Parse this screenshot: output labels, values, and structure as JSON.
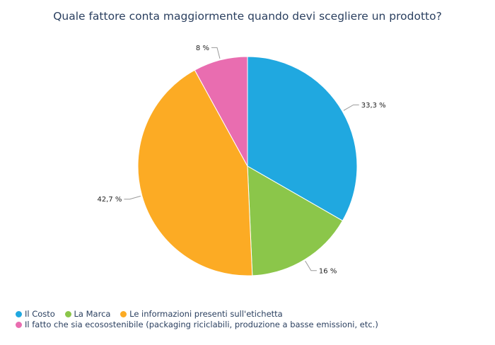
{
  "chart_data": {
    "type": "pie",
    "title": "Quale fattore conta maggiormente quando devi scegliere un prodotto?",
    "categories": [
      "Il Costo",
      "La Marca",
      "Le informazioni presenti sull'etichetta",
      "Il fatto che sia ecosostenibile (packaging riciclabili, produzione a basse emissioni, etc.)"
    ],
    "values": [
      33.3,
      16,
      42.7,
      8
    ],
    "labels": [
      "33,3 %",
      "16 %",
      "42,7 %",
      "8 %"
    ],
    "colors": [
      "#20a8e0",
      "#8bc64a",
      "#fcab24",
      "#e96db0"
    ],
    "legend_position": "bottom-left"
  }
}
